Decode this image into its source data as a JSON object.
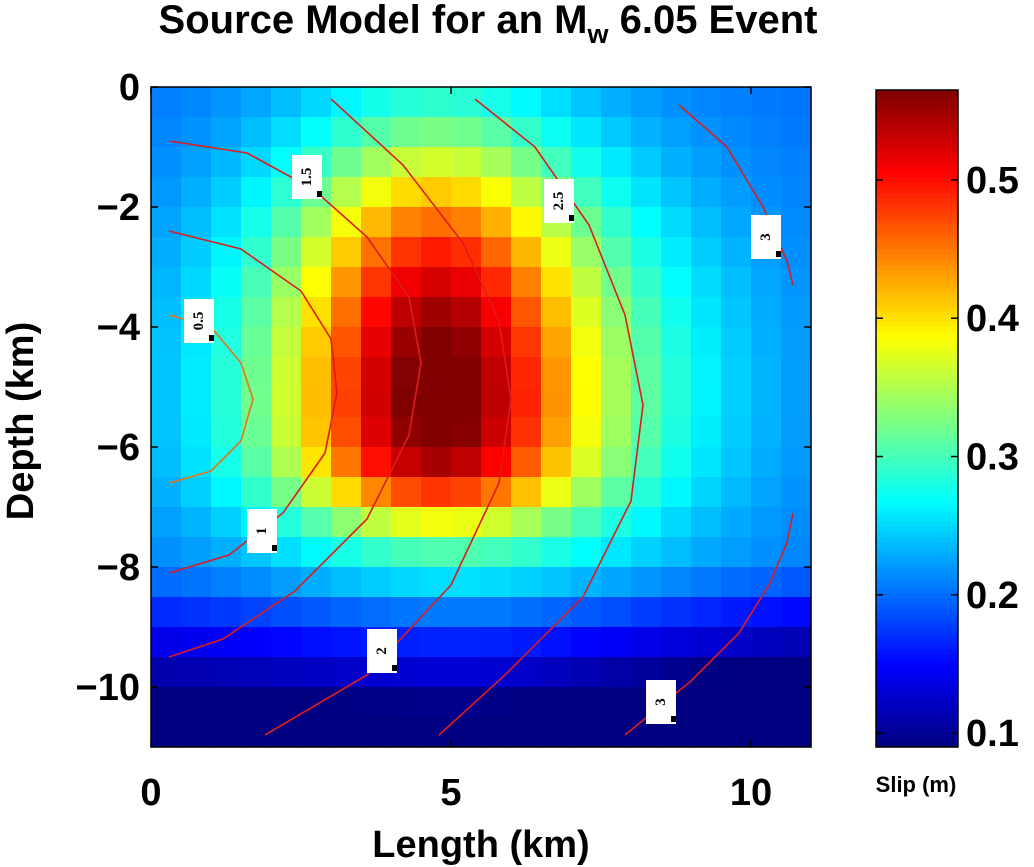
{
  "chart_data": {
    "type": "heatmap",
    "title": "Source Model for an M",
    "title_subscript": "w",
    "title_suffix": " 6.05 Event",
    "xlabel": "Length (km)",
    "ylabel": "Depth (km)",
    "xlim": [
      0,
      11
    ],
    "ylim": [
      -11,
      0
    ],
    "x_ticks": [
      0,
      5,
      10
    ],
    "x_tick_labels": [
      "0",
      "5",
      "10"
    ],
    "y_ticks": [
      0,
      -2,
      -4,
      -6,
      -8,
      -10
    ],
    "y_tick_labels": [
      "0",
      "−2",
      "−4",
      "−6",
      "−8",
      "−10"
    ],
    "grid": false,
    "colormap": "jet",
    "slip_model": {
      "unit": "m",
      "min": 0.09,
      "max": 0.565,
      "peak_length_km": 5.5,
      "peak_depth_km": -4.2,
      "plateau_length_km": [
        3.4,
        6.0
      ],
      "plateau_depth_km": [
        -1.5,
        -7.0
      ],
      "cell_km": 0.5
    },
    "colorbar": {
      "label": "Slip (m)",
      "range": [
        0.09,
        0.565
      ],
      "ticks": [
        0.1,
        0.2,
        0.3,
        0.4,
        0.5
      ],
      "tick_labels": [
        "0.1",
        "0.2",
        "0.3",
        "0.4",
        "0.5"
      ]
    },
    "contour_label_values": [
      "0.5",
      "1",
      "1.5",
      "2",
      "2.5",
      "3",
      "3"
    ],
    "contours": [
      {
        "label": "0.5",
        "color": "#e8741c",
        "x": [
          0.3,
          1.0,
          1.5,
          1.7,
          1.5,
          1.0,
          0.3
        ],
        "y": [
          -3.8,
          -4.0,
          -4.6,
          -5.2,
          -5.9,
          -6.4,
          -6.6
        ]
      },
      {
        "label": "1",
        "color": "#dd1c1c",
        "x": [
          0.3,
          1.5,
          2.5,
          3.0,
          3.1,
          2.9,
          2.2,
          1.3,
          0.3
        ],
        "y": [
          -2.4,
          -2.7,
          -3.4,
          -4.2,
          -5.1,
          -6.1,
          -7.1,
          -7.8,
          -8.1
        ]
      },
      {
        "label": "1.5",
        "color": "#dd1c1c",
        "x": [
          0.3,
          1.6,
          2.7,
          3.6,
          4.3,
          4.5,
          4.3,
          3.6,
          2.4,
          1.2,
          0.3
        ],
        "y": [
          -0.9,
          -1.1,
          -1.7,
          -2.5,
          -3.5,
          -4.6,
          -5.8,
          -7.2,
          -8.4,
          -9.2,
          -9.5
        ]
      },
      {
        "label": "2",
        "color": "#dd1c1c",
        "x": [
          3.0,
          4.2,
          5.2,
          5.8,
          6.0,
          5.8,
          5.0,
          3.6,
          1.9
        ],
        "y": [
          -0.2,
          -1.3,
          -2.6,
          -3.9,
          -5.2,
          -6.6,
          -8.3,
          -9.8,
          -10.8
        ]
      },
      {
        "label": "2.5",
        "color": "#dd1c1c",
        "x": [
          5.4,
          6.4,
          7.3,
          7.9,
          8.2,
          8.0,
          7.2,
          5.9,
          4.8
        ],
        "y": [
          -0.2,
          -1.0,
          -2.3,
          -3.8,
          -5.3,
          -6.9,
          -8.5,
          -9.8,
          -10.8
        ]
      },
      {
        "label": "3",
        "color": "#dd1c1c",
        "x": [
          8.8,
          9.6,
          10.2,
          10.6,
          10.7
        ],
        "y": [
          -0.3,
          -1.0,
          -2.0,
          -2.9,
          -3.3
        ]
      },
      {
        "label": "3",
        "color": "#dd1c1c",
        "x": [
          7.9,
          9.0,
          9.8,
          10.3,
          10.6,
          10.7
        ],
        "y": [
          -10.8,
          -9.9,
          -9.1,
          -8.3,
          -7.6,
          -7.1
        ]
      }
    ],
    "contour_label_positions": [
      {
        "text": "0.5",
        "x": 0.8,
        "y": -3.9
      },
      {
        "text": "1",
        "x": 1.85,
        "y": -7.4
      },
      {
        "text": "1.5",
        "x": 2.6,
        "y": -1.5
      },
      {
        "text": "2",
        "x": 3.85,
        "y": -9.4
      },
      {
        "text": "2.5",
        "x": 6.8,
        "y": -1.9
      },
      {
        "text": "3",
        "x": 10.25,
        "y": -2.5
      },
      {
        "text": "3",
        "x": 8.5,
        "y": -10.25
      }
    ]
  }
}
